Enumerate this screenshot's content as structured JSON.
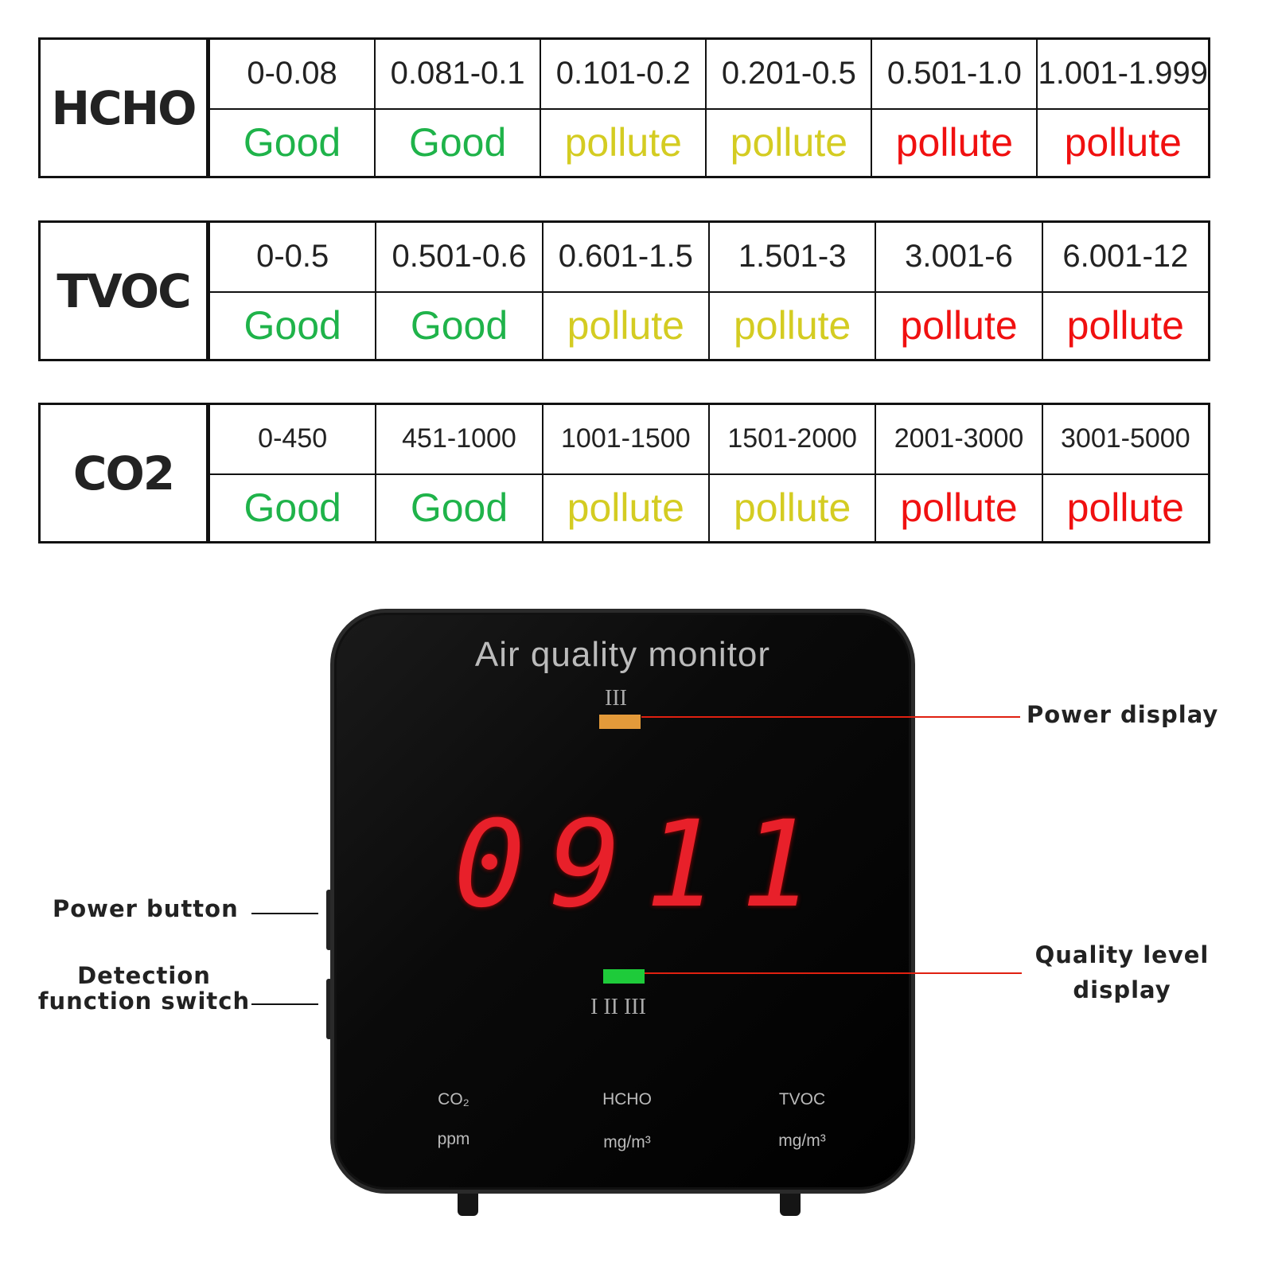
{
  "tables": [
    {
      "name": "HCHO",
      "ranges": [
        "0-0.08",
        "0.081-0.1",
        "0.101-0.2",
        "0.201-0.5",
        "0.501-1.0",
        "1.001-1.999"
      ],
      "levels": [
        "Good",
        "Good",
        "pollute",
        "pollute",
        "pollute",
        "pollute"
      ]
    },
    {
      "name": "TVOC",
      "ranges": [
        "0-0.5",
        "0.501-0.6",
        "0.601-1.5",
        "1.501-3",
        "3.001-6",
        "6.001-12"
      ],
      "levels": [
        "Good",
        "Good",
        "pollute",
        "pollute",
        "pollute",
        "pollute"
      ]
    },
    {
      "name": "CO2",
      "ranges": [
        "0-450",
        "451-1000",
        "1001-1500",
        "1501-2000",
        "2001-3000",
        "3001-5000"
      ],
      "levels": [
        "Good",
        "Good",
        "pollute",
        "pollute",
        "pollute",
        "pollute"
      ]
    }
  ],
  "level_colors": [
    "#1fb34a",
    "#1fb34a",
    "#d4cc22",
    "#d4cc22",
    "#f01010",
    "#f01010"
  ],
  "device": {
    "title": "Air quality monitor",
    "power_roman": "III",
    "reading": "0911",
    "quality_roman": "I II III",
    "power_bar_color": "#e39a3a",
    "quality_bar_color": "#1ecb3a",
    "digit_color": "#e8202a",
    "sensors": [
      {
        "name": "CO₂",
        "unit": "ppm"
      },
      {
        "name": "HCHO",
        "unit": "mg/m³"
      },
      {
        "name": "TVOC",
        "unit": "mg/m³"
      }
    ]
  },
  "callouts": {
    "power_display": "Power display",
    "power_button": "Power button",
    "detection_switch_1": "Detection",
    "detection_switch_2": "function switch",
    "quality_level_1": "Quality level",
    "quality_level_2": "display"
  }
}
